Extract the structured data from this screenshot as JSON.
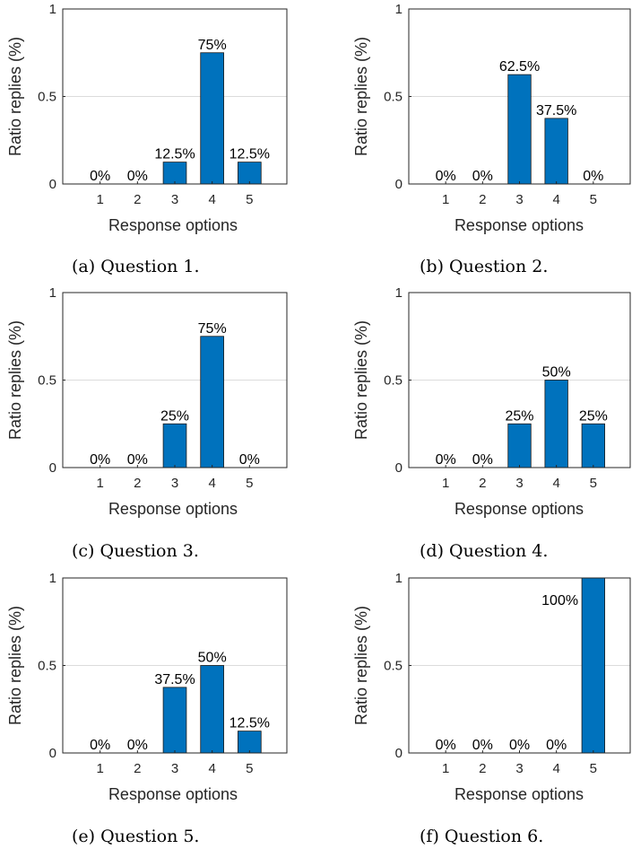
{
  "style": {
    "bar_color": "#0072bd",
    "grid_color": "#dcdcdc",
    "axis_color": "#262626"
  },
  "chart_data": [
    {
      "type": "bar",
      "caption": "(a) Question 1.",
      "categories": [
        "1",
        "2",
        "3",
        "4",
        "5"
      ],
      "values": [
        0,
        0,
        0.125,
        0.75,
        0.125
      ],
      "data_labels": [
        "0%",
        "0%",
        "12.5%",
        "75%",
        "12.5%"
      ],
      "xlabel": "Response options",
      "ylabel": "Ratio replies (%)",
      "ylim": [
        0,
        1
      ],
      "yticks": [
        "0",
        "0.5",
        "1"
      ],
      "grid": "horizontal"
    },
    {
      "type": "bar",
      "caption": "(b) Question 2.",
      "categories": [
        "1",
        "2",
        "3",
        "4",
        "5"
      ],
      "values": [
        0,
        0,
        0.625,
        0.375,
        0
      ],
      "data_labels": [
        "0%",
        "0%",
        "62.5%",
        "37.5%",
        "0%"
      ],
      "xlabel": "Response options",
      "ylabel": "Ratio replies (%)",
      "ylim": [
        0,
        1
      ],
      "yticks": [
        "0",
        "0.5",
        "1"
      ],
      "grid": "horizontal"
    },
    {
      "type": "bar",
      "caption": "(c) Question 3.",
      "categories": [
        "1",
        "2",
        "3",
        "4",
        "5"
      ],
      "values": [
        0,
        0,
        0.25,
        0.75,
        0
      ],
      "data_labels": [
        "0%",
        "0%",
        "25%",
        "75%",
        "0%"
      ],
      "xlabel": "Response options",
      "ylabel": "Ratio replies (%)",
      "ylim": [
        0,
        1
      ],
      "yticks": [
        "0",
        "0.5",
        "1"
      ],
      "grid": "horizontal"
    },
    {
      "type": "bar",
      "caption": "(d) Question 4.",
      "categories": [
        "1",
        "2",
        "3",
        "4",
        "5"
      ],
      "values": [
        0,
        0,
        0.25,
        0.5,
        0.25
      ],
      "data_labels": [
        "0%",
        "0%",
        "25%",
        "50%",
        "25%"
      ],
      "xlabel": "Response options",
      "ylabel": "Ratio replies (%)",
      "ylim": [
        0,
        1
      ],
      "yticks": [
        "0",
        "0.5",
        "1"
      ],
      "grid": "horizontal"
    },
    {
      "type": "bar",
      "caption": "(e) Question 5.",
      "categories": [
        "1",
        "2",
        "3",
        "4",
        "5"
      ],
      "values": [
        0,
        0,
        0.375,
        0.5,
        0.125
      ],
      "data_labels": [
        "0%",
        "0%",
        "37.5%",
        "50%",
        "12.5%"
      ],
      "xlabel": "Response options",
      "ylabel": "Ratio replies (%)",
      "ylim": [
        0,
        1
      ],
      "yticks": [
        "0",
        "0.5",
        "1"
      ],
      "grid": "horizontal"
    },
    {
      "type": "bar",
      "caption": "(f) Question 6.",
      "categories": [
        "1",
        "2",
        "3",
        "4",
        "5"
      ],
      "values": [
        0,
        0,
        0,
        0,
        1
      ],
      "data_labels": [
        "0%",
        "0%",
        "0%",
        "0%",
        "100%"
      ],
      "xlabel": "Response options",
      "ylabel": "Ratio replies (%)",
      "ylim": [
        0,
        1
      ],
      "yticks": [
        "0",
        "0.5",
        "1"
      ],
      "grid": "horizontal"
    }
  ]
}
